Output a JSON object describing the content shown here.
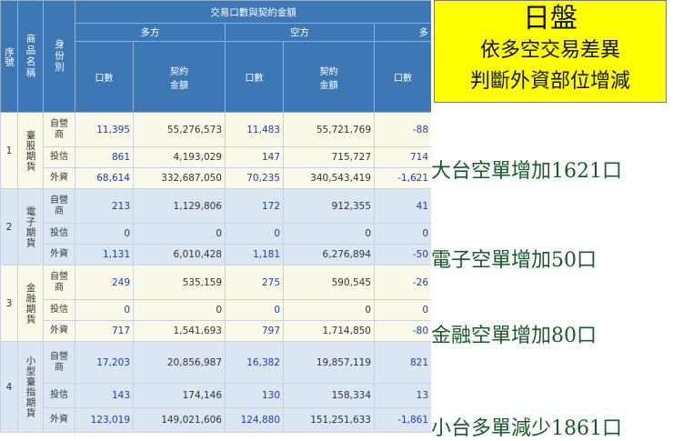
{
  "table": {
    "header_main": "交易口數與契約金額",
    "header_long": "多方",
    "header_short": "空方",
    "header_net": "多",
    "col_seq": "序號",
    "col_product": "商品名稱",
    "col_identity": "身份別",
    "col_lots": "口數",
    "col_amount": "契約金額",
    "groups": [
      {
        "seq": "1",
        "name": "臺股期貨",
        "rows": [
          {
            "identity": "自營商",
            "long_lots": "11,395",
            "long_amt": "55,276,573",
            "short_lots": "11,483",
            "short_amt": "55,721,769",
            "net_lots": "-88"
          },
          {
            "identity": "投信",
            "long_lots": "861",
            "long_amt": "4,193,029",
            "short_lots": "147",
            "short_amt": "715,727",
            "net_lots": "714"
          },
          {
            "identity": "外資",
            "long_lots": "68,614",
            "long_amt": "332,687,050",
            "short_lots": "70,235",
            "short_amt": "340,543,419",
            "net_lots": "-1,621"
          }
        ]
      },
      {
        "seq": "2",
        "name": "電子期貨",
        "rows": [
          {
            "identity": "自營商",
            "long_lots": "213",
            "long_amt": "1,129,806",
            "short_lots": "172",
            "short_amt": "912,355",
            "net_lots": "41"
          },
          {
            "identity": "投信",
            "long_lots": "0",
            "long_amt": "0",
            "short_lots": "0",
            "short_amt": "0",
            "net_lots": "0"
          },
          {
            "identity": "外資",
            "long_lots": "1,131",
            "long_amt": "6,010,428",
            "short_lots": "1,181",
            "short_amt": "6,276,894",
            "net_lots": "-50"
          }
        ]
      },
      {
        "seq": "3",
        "name": "金融期貨",
        "rows": [
          {
            "identity": "自營商",
            "long_lots": "249",
            "long_amt": "535,159",
            "short_lots": "275",
            "short_amt": "590,545",
            "net_lots": "-26"
          },
          {
            "identity": "投信",
            "long_lots": "0",
            "long_amt": "0",
            "short_lots": "0",
            "short_amt": "0",
            "net_lots": "0"
          },
          {
            "identity": "外資",
            "long_lots": "717",
            "long_amt": "1,541,693",
            "short_lots": "797",
            "short_amt": "1,714,850",
            "net_lots": "-80"
          }
        ]
      },
      {
        "seq": "4",
        "name": "小型臺指期貨",
        "rows": [
          {
            "identity": "自營商",
            "long_lots": "17,203",
            "long_amt": "20,856,987",
            "short_lots": "16,382",
            "short_amt": "19,857,119",
            "net_lots": "821"
          },
          {
            "identity": "投信",
            "long_lots": "143",
            "long_amt": "174,146",
            "short_lots": "130",
            "short_amt": "158,334",
            "net_lots": "13"
          },
          {
            "identity": "外資",
            "long_lots": "123,019",
            "long_amt": "149,021,606",
            "short_lots": "124,880",
            "short_amt": "151,251,633",
            "net_lots": "-1,861"
          }
        ]
      }
    ]
  },
  "panel": {
    "title": "日盤",
    "subtitle_1": "依多空交易差異",
    "subtitle_2": "判斷外資部位增減",
    "notes": [
      "大台空單增加1621口",
      "電子空單增加50口",
      "金融空單增加80口",
      "小台多單減少1861口"
    ],
    "title_bg_color": "#ffff00",
    "note_color": "#175b2a"
  },
  "colors": {
    "header_bg": "#3e78b4",
    "row_cream": "#fbf9ea",
    "row_blue": "#dce6f2",
    "link_blue": "#1a3fb3"
  }
}
